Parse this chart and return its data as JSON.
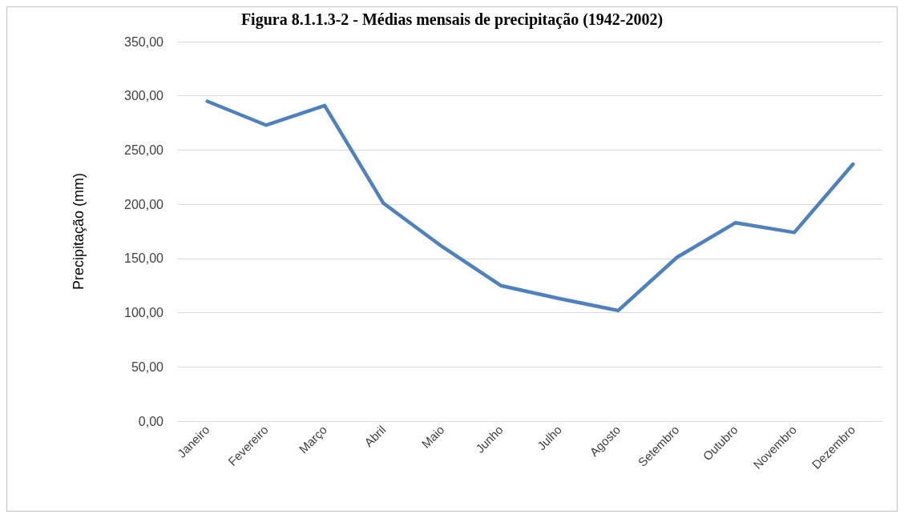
{
  "chart_data": {
    "type": "line",
    "title": "Figura 8.1.1.3-2 - Médias mensais de precipitação (1942-2002)",
    "ylabel": "Precipitação (mm)",
    "categories": [
      "Janeiro",
      "Fevereiro",
      "Março",
      "Abril",
      "Maio",
      "Junho",
      "Julho",
      "Agosto",
      "Setembro",
      "Outubro",
      "Novembro",
      "Dezembro"
    ],
    "series": [
      {
        "color": "#4f81bd",
        "values": [
          295,
          273,
          291,
          201,
          161,
          125,
          113,
          102,
          151,
          183,
          174,
          237
        ]
      }
    ],
    "ylim": [
      0,
      350
    ],
    "yticks": [
      {
        "value": 0,
        "label": "0,00"
      },
      {
        "value": 50,
        "label": "50,00"
      },
      {
        "value": 100,
        "label": "100,00"
      },
      {
        "value": 150,
        "label": "150,00"
      },
      {
        "value": 200,
        "label": "200,00"
      },
      {
        "value": 250,
        "label": "250,00"
      },
      {
        "value": 300,
        "label": "300,00"
      },
      {
        "value": 350,
        "label": "350,00"
      }
    ],
    "grid": "y",
    "marker": "none",
    "line_style": "solid"
  }
}
